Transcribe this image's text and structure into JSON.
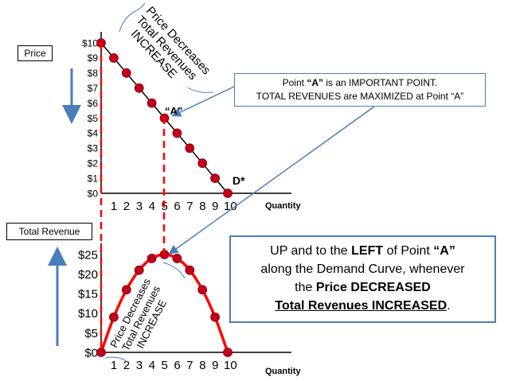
{
  "price_label": "Price",
  "total_revenue_label": "Total Revenue",
  "callout": {
    "line1_pre": "Point ",
    "line1_bold": "“A”",
    "line1_post": " is an IMPORTANT POINT.",
    "line2": "TOTAL REVENUES are MAXIMIZED at Point “A”"
  },
  "summary": {
    "l1_pre": "UP and to the ",
    "l1_bold": "LEFT",
    "l1_mid": " of Point ",
    "l1_bold2": "“A”",
    "l2": "along the Demand Curve, whenever",
    "l3_pre": "the ",
    "l3_bold": "Price DECREASED",
    "l4_u": "Total Revenues INCREASED",
    "l4_post": "."
  },
  "top_annotation": [
    "Price Decreases",
    "Total Revenues",
    "INCREASE"
  ],
  "bottom_annotation": [
    "Price Decreases",
    "Total Revenues",
    "INCREASE"
  ],
  "point_a_label": "“A”",
  "demand_label": "D*",
  "colors": {
    "line": "#000000",
    "curve": "#ff0000",
    "marker": "#c0001e",
    "dash": "#ff0000",
    "arrow": "#4a7ebb"
  },
  "chart_data": [
    {
      "type": "line",
      "title": "",
      "ylabel": "Price",
      "xlabel": "Quantity",
      "y_tick_labels": [
        "$0",
        "$1",
        "$2",
        "$3",
        "$4",
        "$5",
        "$6",
        "$7",
        "$8",
        "$9",
        "$10"
      ],
      "x_tick_labels": [
        "1",
        "2",
        "3",
        "4",
        "5",
        "6",
        "7",
        "8",
        "9",
        "10"
      ],
      "xlim": [
        0,
        10
      ],
      "ylim": [
        0,
        10
      ],
      "series": [
        {
          "x": [
            0,
            1,
            2,
            3,
            4,
            5,
            6,
            7,
            8,
            9,
            10
          ],
          "y": [
            10,
            9,
            8,
            7,
            6,
            5,
            4,
            3,
            2,
            1,
            0
          ]
        }
      ]
    },
    {
      "type": "line",
      "title": "",
      "ylabel": "Total Revenue",
      "xlabel": "Quantity",
      "y_tick_labels": [
        "$0",
        "$5",
        "$10",
        "$15",
        "$20",
        "$25"
      ],
      "x_tick_labels": [
        "1",
        "2",
        "3",
        "4",
        "5",
        "6",
        "7",
        "8",
        "9",
        "10"
      ],
      "xlim": [
        0,
        10
      ],
      "ylim": [
        0,
        25
      ],
      "series": [
        {
          "x": [
            0,
            1,
            2,
            3,
            4,
            5,
            6,
            7,
            8,
            9,
            10
          ],
          "y": [
            0,
            9,
            16,
            21,
            24,
            25,
            24,
            21,
            16,
            9,
            0
          ]
        }
      ]
    }
  ]
}
